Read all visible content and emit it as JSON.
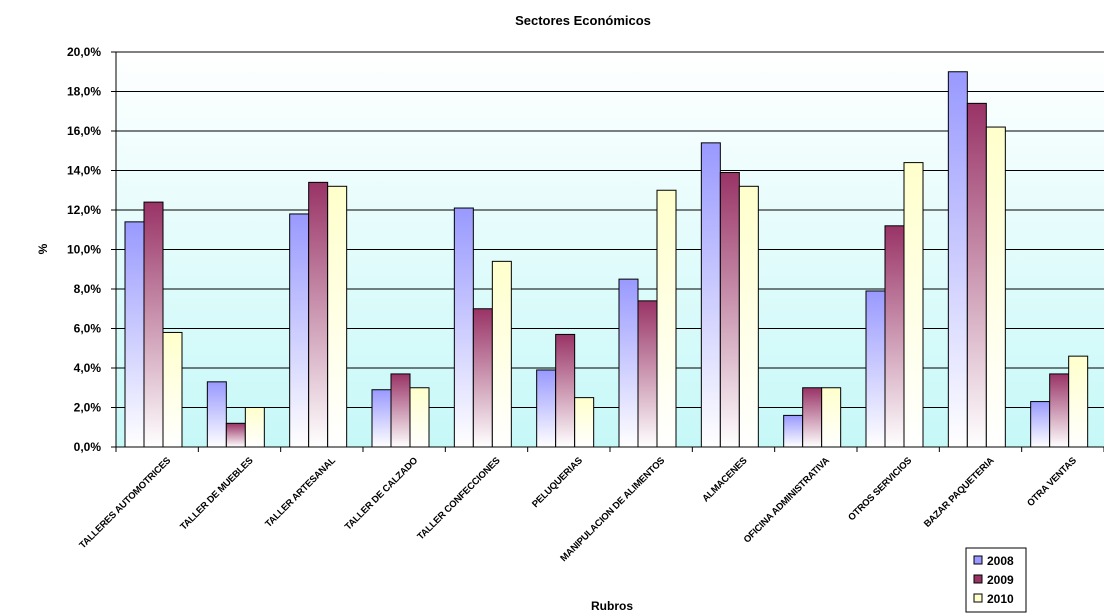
{
  "chart_data": {
    "type": "bar",
    "title": "Sectores Económicos",
    "xlabel": "Rubros",
    "ylabel": "%",
    "ylim": [
      0,
      20
    ],
    "ytick_step": 2,
    "ytick_labels": [
      "0,0%",
      "2,0%",
      "4,0%",
      "6,0%",
      "8,0%",
      "10,0%",
      "12,0%",
      "14,0%",
      "16,0%",
      "18,0%",
      "20,0%"
    ],
    "grid": true,
    "legend_position": "bottom-right",
    "categories": [
      "TALLERES AUTOMOTRICES",
      "TALLER DE MUEBLES",
      "TALLER ARTESANAL",
      "TALLER DE CALZADO",
      "TALLER CONFECCIONES",
      "PELUQUERIAS",
      "MANIPULACION DE ALIMENTOS",
      "ALMACENES",
      "OFICINA ADMINISTRATIVA",
      "OTROS SERVICIOS",
      "BAZAR PAQUETERIA",
      "OTRA VENTAS"
    ],
    "series": [
      {
        "name": "2008",
        "color": "#9999ff",
        "values": [
          11.4,
          3.3,
          11.8,
          2.9,
          12.1,
          3.9,
          8.5,
          15.4,
          1.6,
          7.9,
          19.0,
          2.3
        ]
      },
      {
        "name": "2009",
        "color": "#993366",
        "values": [
          12.4,
          1.2,
          13.4,
          3.7,
          7.0,
          5.7,
          7.4,
          13.9,
          3.0,
          11.2,
          17.4,
          3.7
        ]
      },
      {
        "name": "2010",
        "color": "#ffffcc",
        "values": [
          5.8,
          2.0,
          13.2,
          3.0,
          9.4,
          2.5,
          13.0,
          13.2,
          3.0,
          14.4,
          16.2,
          4.6
        ]
      }
    ]
  }
}
